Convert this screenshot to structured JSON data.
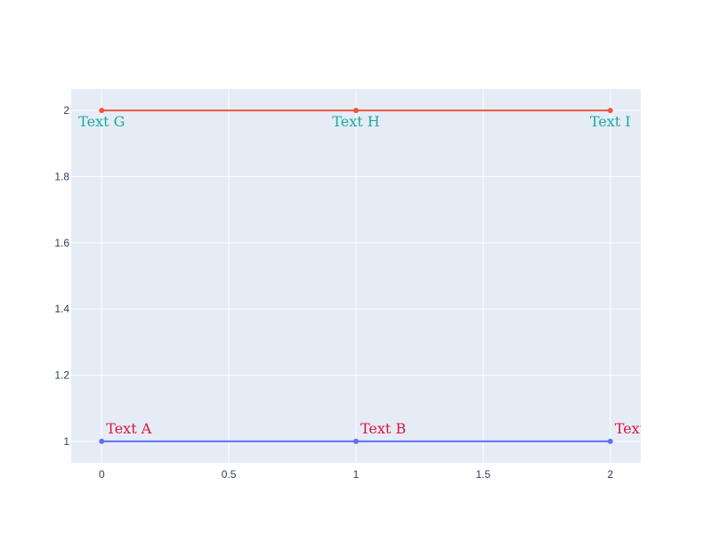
{
  "chart_data": {
    "type": "line",
    "title": "",
    "xlabel": "",
    "ylabel": "",
    "xlim": [
      -0.12,
      2.12
    ],
    "ylim": [
      0.935,
      2.065
    ],
    "x_ticks": [
      0,
      0.5,
      1,
      1.5,
      2
    ],
    "x_tick_labels": [
      "0",
      "0.5",
      "1",
      "1.5",
      "2"
    ],
    "y_ticks": [
      1,
      1.2,
      1.4,
      1.6,
      1.8,
      2
    ],
    "y_tick_labels": [
      "1",
      "1.2",
      "1.4",
      "1.6",
      "1.8",
      "2"
    ],
    "grid": true,
    "legend": false,
    "plot_background": "#e5ecf6",
    "series": [
      {
        "color": "#636efa",
        "label_color": "#dc143c",
        "label_position": "top-right",
        "x": [
          0,
          1,
          2
        ],
        "y": [
          1,
          1,
          1
        ],
        "labels": [
          "Text A",
          "Text B",
          "Text C"
        ]
      },
      {
        "color": "#ef553b",
        "label_color": "#1aaa9e",
        "label_position": "bottom-center",
        "x": [
          0,
          1,
          2
        ],
        "y": [
          2,
          2,
          2
        ],
        "labels": [
          "Text G",
          "Text H",
          "Text I"
        ]
      }
    ]
  }
}
